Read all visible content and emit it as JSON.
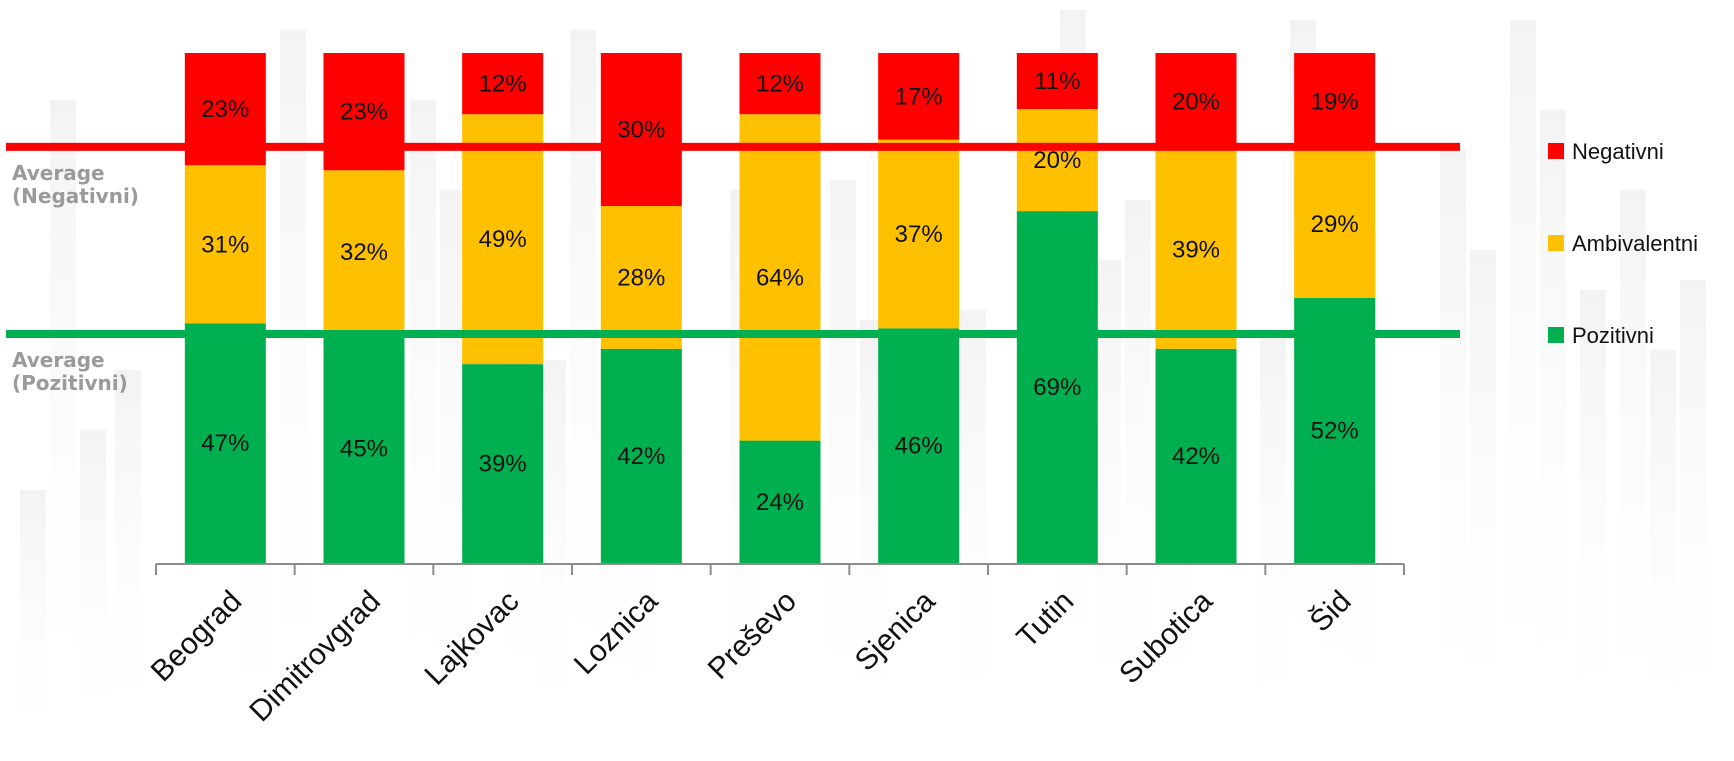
{
  "chart_data": {
    "type": "bar",
    "stacked": true,
    "categories": [
      "Beograd",
      "Dimitrovgrad",
      "Lajkovac",
      "Loznica",
      "Preševo",
      "Sjenica",
      "Tutin",
      "Subotica",
      "Šid"
    ],
    "series": [
      {
        "name": "Pozitivni",
        "color": "#00b050",
        "values": [
          47,
          45,
          39,
          42,
          24,
          46,
          69,
          42,
          52
        ],
        "labels": [
          "47%",
          "45%",
          "39%",
          "42%",
          "24%",
          "46%",
          "69%",
          "42%",
          "52%"
        ]
      },
      {
        "name": "Ambivalentni",
        "color": "#ffc000",
        "values": [
          31,
          32,
          49,
          28,
          64,
          37,
          20,
          39,
          29
        ],
        "labels": [
          "31%",
          "32%",
          "49%",
          "28%",
          "64%",
          "37%",
          "20%",
          "39%",
          "29%"
        ]
      },
      {
        "name": "Negativni",
        "color": "#ff0000",
        "values": [
          23,
          23,
          12,
          30,
          12,
          17,
          11,
          20,
          19
        ],
        "labels": [
          "23%",
          "23%",
          "12%",
          "30%",
          "12%",
          "17%",
          "11%",
          "20%",
          "19%"
        ]
      }
    ],
    "reference_lines": [
      {
        "label_line1": "Average",
        "label_line2": "(Negativni)",
        "value": 81.6,
        "color": "#ff0000"
      },
      {
        "label_line1": "Average",
        "label_line2": "(Pozitivni)",
        "value": 44.9,
        "color": "#00b050"
      }
    ],
    "legend": {
      "position": "right",
      "items": [
        {
          "name": "Negativni",
          "color": "#ff0000"
        },
        {
          "name": "Ambivalentni",
          "color": "#ffc000"
        },
        {
          "name": "Pozitivni",
          "color": "#00b050"
        }
      ]
    },
    "ylim": [
      0,
      100
    ],
    "grid": false,
    "title": "",
    "xlabel": "",
    "ylabel": ""
  }
}
